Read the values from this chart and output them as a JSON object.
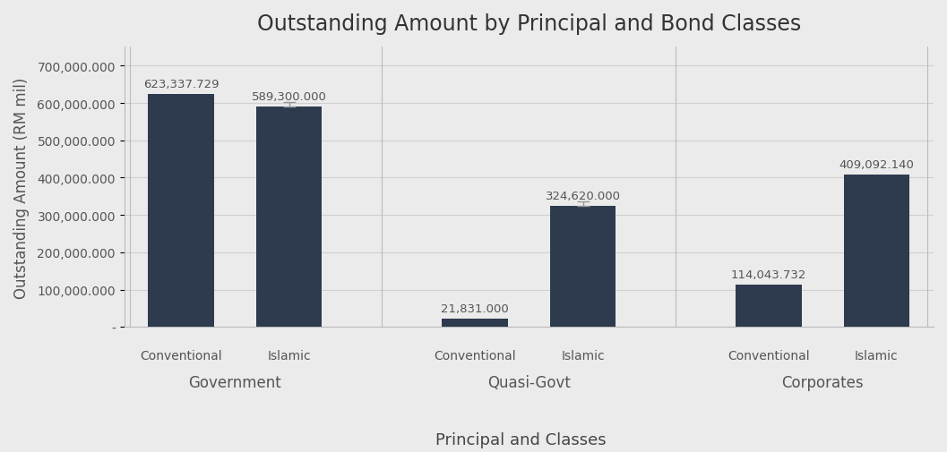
{
  "title": "Outstanding Amount by Principal and Bond Classes",
  "xlabel": "Principal and Classes",
  "ylabel": "Outstanding Amount (RM mil)",
  "groups": [
    "Government",
    "Quasi-Govt",
    "Corporates"
  ],
  "subgroups": [
    "Conventional",
    "Islamic"
  ],
  "values": [
    [
      623337.729,
      589300.0
    ],
    [
      21831.0,
      324620.0
    ],
    [
      114043.732,
      409092.14
    ]
  ],
  "labels": [
    [
      "623,337.729",
      "589,300.000"
    ],
    [
      "21,831.000",
      "324,620.000"
    ],
    [
      "114,043.732",
      "409,092.140"
    ]
  ],
  "bar_color": "#2E3A4E",
  "background_color": "#EBEBEB",
  "ylim": [
    0,
    750000
  ],
  "yticks": [
    0,
    100000,
    200000,
    300000,
    400000,
    500000,
    600000,
    700000
  ],
  "ytick_labels": [
    "-",
    "100,000.000",
    "200,000.000",
    "300,000.000",
    "400,000.000",
    "500,000.000",
    "600,000.000",
    "700,000.000"
  ],
  "bar_width": 0.55,
  "title_fontsize": 17,
  "axis_label_fontsize": 12,
  "tick_fontsize": 10,
  "annotation_fontsize": 9.5,
  "group_label_fontsize": 12,
  "subgroup_label_fontsize": 10
}
